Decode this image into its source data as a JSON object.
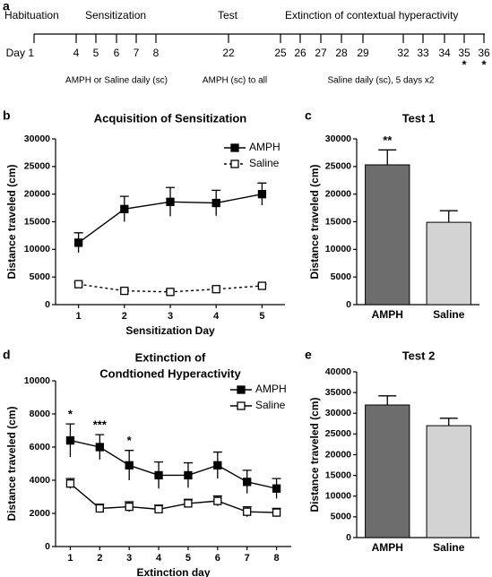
{
  "timeline": {
    "panel": "a",
    "phases": [
      "Habituation",
      "Sensitization",
      "Test",
      "Extinction of contextual hyperactivity"
    ],
    "days": [
      {
        "label": "Day 1"
      },
      {
        "label": "4"
      },
      {
        "label": "5"
      },
      {
        "label": "6"
      },
      {
        "label": "7"
      },
      {
        "label": "8"
      },
      {
        "label": "22"
      },
      {
        "label": "25"
      },
      {
        "label": "26"
      },
      {
        "label": "27"
      },
      {
        "label": "28"
      },
      {
        "label": "29"
      },
      {
        "label": "32"
      },
      {
        "label": "33"
      },
      {
        "label": "34"
      },
      {
        "label": "35",
        "mark": "*"
      },
      {
        "label": "36",
        "mark": "*"
      }
    ],
    "notes": [
      "AMPH  or Saline daily (sc)",
      "AMPH (sc) to all",
      "Saline daily (sc), 5 days x2"
    ]
  },
  "chart_data": [
    {
      "type": "line",
      "panel": "b",
      "title": [
        "Acquisition of Sensitization"
      ],
      "xlabel": "Sensitization Day",
      "ylabel": "Distance traveled (cm)",
      "x": [
        1,
        2,
        3,
        4,
        5
      ],
      "xlim": [
        0.5,
        5.5
      ],
      "xticks": [
        1,
        2,
        3,
        4,
        5
      ],
      "ylim": [
        0,
        30000
      ],
      "yticks": [
        0,
        5000,
        10000,
        15000,
        20000,
        25000,
        30000
      ],
      "series": [
        {
          "name": "AMPH",
          "color": "#000000",
          "marker": "filled",
          "linestyle": "solid",
          "values": [
            11200,
            17300,
            18600,
            18400,
            20000
          ],
          "errors": [
            1800,
            2300,
            2600,
            2300,
            2000
          ]
        },
        {
          "name": "Saline",
          "color": "#000000",
          "marker": "open",
          "linestyle": "dashed",
          "values": [
            3700,
            2500,
            2300,
            2800,
            3400
          ],
          "errors": [
            300,
            300,
            300,
            300,
            300
          ]
        }
      ],
      "annotations": []
    },
    {
      "type": "bar",
      "panel": "c",
      "title": [
        "Test 1"
      ],
      "ylabel": "Distance traveled (cm)",
      "categories": [
        "AMPH",
        "Saline"
      ],
      "values": [
        25300,
        14900
      ],
      "errors": [
        2700,
        2100
      ],
      "colors": [
        "#6d6d6d",
        "#d3d3d3"
      ],
      "ylim": [
        0,
        30000
      ],
      "yticks": [
        0,
        5000,
        10000,
        15000,
        20000,
        25000,
        30000
      ],
      "annotations": [
        {
          "text": "**",
          "category": "AMPH"
        }
      ]
    },
    {
      "type": "line",
      "panel": "d",
      "title": [
        "Extinction of",
        "Condtioned Hyperactivity"
      ],
      "xlabel": "Extinction day",
      "ylabel": "Distance traveled (cm)",
      "x": [
        1,
        2,
        3,
        4,
        5,
        6,
        7,
        8
      ],
      "xlim": [
        0.5,
        8.5
      ],
      "xticks": [
        1,
        2,
        3,
        4,
        5,
        6,
        7,
        8
      ],
      "ylim": [
        0,
        10000
      ],
      "yticks": [
        0,
        2000,
        4000,
        6000,
        8000,
        10000
      ],
      "series": [
        {
          "name": "AMPH",
          "color": "#000000",
          "marker": "filled",
          "linestyle": "solid",
          "values": [
            6400,
            6000,
            4900,
            4300,
            4300,
            4900,
            3900,
            3500
          ],
          "errors": [
            1000,
            750,
            900,
            800,
            750,
            800,
            700,
            600
          ]
        },
        {
          "name": "Saline",
          "color": "#000000",
          "marker": "open",
          "linestyle": "solid",
          "values": [
            3800,
            2300,
            2400,
            2250,
            2600,
            2750,
            2100,
            2050
          ],
          "errors": [
            300,
            250,
            300,
            250,
            250,
            300,
            300,
            250
          ]
        }
      ],
      "annotations": [
        {
          "text": "*",
          "x": 1
        },
        {
          "text": "***",
          "x": 2
        },
        {
          "text": "*",
          "x": 3
        }
      ]
    },
    {
      "type": "bar",
      "panel": "e",
      "title": [
        "Test 2"
      ],
      "ylabel": "Distance traveled (cm)",
      "categories": [
        "AMPH",
        "Saline"
      ],
      "values": [
        32000,
        27000
      ],
      "errors": [
        2200,
        1800
      ],
      "colors": [
        "#6d6d6d",
        "#d3d3d3"
      ],
      "ylim": [
        0,
        40000
      ],
      "yticks": [
        0,
        5000,
        10000,
        15000,
        20000,
        25000,
        30000,
        35000,
        40000
      ],
      "annotations": []
    }
  ]
}
